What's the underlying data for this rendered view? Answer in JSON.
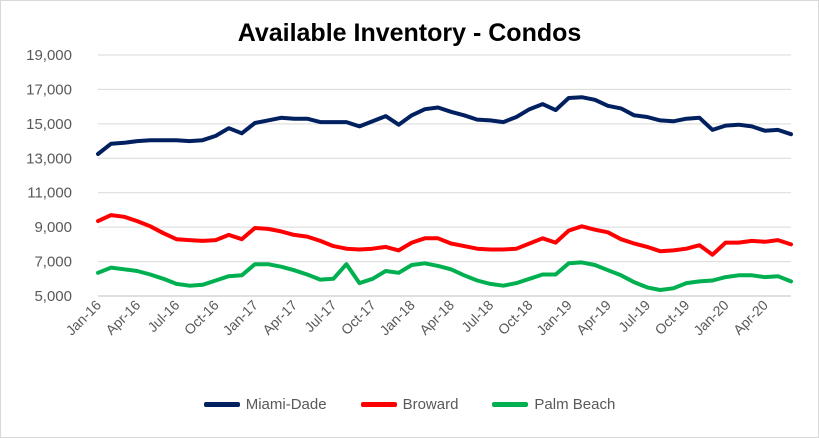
{
  "chart_data": {
    "type": "line",
    "title": "Available Inventory - Condos",
    "xlabel": "",
    "ylabel": "",
    "ylim": [
      5000,
      19000
    ],
    "yticks": [
      "5,000",
      "7,000",
      "9,000",
      "11,000",
      "13,000",
      "15,000",
      "17,000",
      "19,000"
    ],
    "ytick_values": [
      5000,
      7000,
      9000,
      11000,
      13000,
      15000,
      17000,
      19000
    ],
    "x_tick_labels": [
      "Jan-16",
      "Apr-16",
      "Jul-16",
      "Oct-16",
      "Jan-17",
      "Apr-17",
      "Jul-17",
      "Oct-17",
      "Jan-18",
      "Apr-18",
      "Jul-18",
      "Oct-18",
      "Jan-19",
      "Apr-19",
      "Jul-19",
      "Oct-19",
      "Jan-20",
      "Apr-20"
    ],
    "x_tick_step": 3,
    "num_points": 54,
    "legend_position": "bottom",
    "grid": "horizontal",
    "series": [
      {
        "name": "Miami-Dade",
        "color": "#002060",
        "values": [
          13250,
          13850,
          13900,
          14000,
          14050,
          14050,
          14050,
          14000,
          14050,
          14300,
          14750,
          14450,
          15050,
          15200,
          15350,
          15300,
          15300,
          15100,
          15100,
          15100,
          14850,
          15150,
          15450,
          14950,
          15500,
          15850,
          15950,
          15700,
          15500,
          15250,
          15200,
          15100,
          15400,
          15850,
          16150,
          15800,
          16500,
          16550,
          16400,
          16050,
          15900,
          15500,
          15400,
          15200,
          15150,
          15300,
          15350,
          14650,
          14900,
          14950,
          14850,
          14600,
          14650,
          14400
        ]
      },
      {
        "name": "Broward",
        "color": "#ff0000",
        "values": [
          9350,
          9700,
          9600,
          9350,
          9050,
          8650,
          8300,
          8250,
          8200,
          8250,
          8550,
          8300,
          8950,
          8900,
          8750,
          8550,
          8450,
          8200,
          7900,
          7750,
          7700,
          7750,
          7850,
          7650,
          8100,
          8350,
          8350,
          8050,
          7900,
          7750,
          7700,
          7700,
          7750,
          8050,
          8350,
          8100,
          8800,
          9050,
          8850,
          8700,
          8300,
          8050,
          7850,
          7600,
          7650,
          7750,
          7950,
          7400,
          8100,
          8100,
          8200,
          8150,
          8250,
          8000
        ]
      },
      {
        "name": "Palm Beach",
        "color": "#00b050",
        "values": [
          6350,
          6650,
          6550,
          6450,
          6250,
          6000,
          5700,
          5600,
          5650,
          5900,
          6150,
          6200,
          6850,
          6850,
          6700,
          6500,
          6250,
          5950,
          6000,
          6850,
          5750,
          6000,
          6450,
          6350,
          6800,
          6900,
          6750,
          6550,
          6200,
          5900,
          5700,
          5600,
          5750,
          6000,
          6250,
          6250,
          6900,
          6950,
          6800,
          6500,
          6200,
          5800,
          5500,
          5350,
          5450,
          5750,
          5850,
          5900,
          6100,
          6200,
          6200,
          6100,
          6150,
          5850
        ]
      }
    ]
  }
}
